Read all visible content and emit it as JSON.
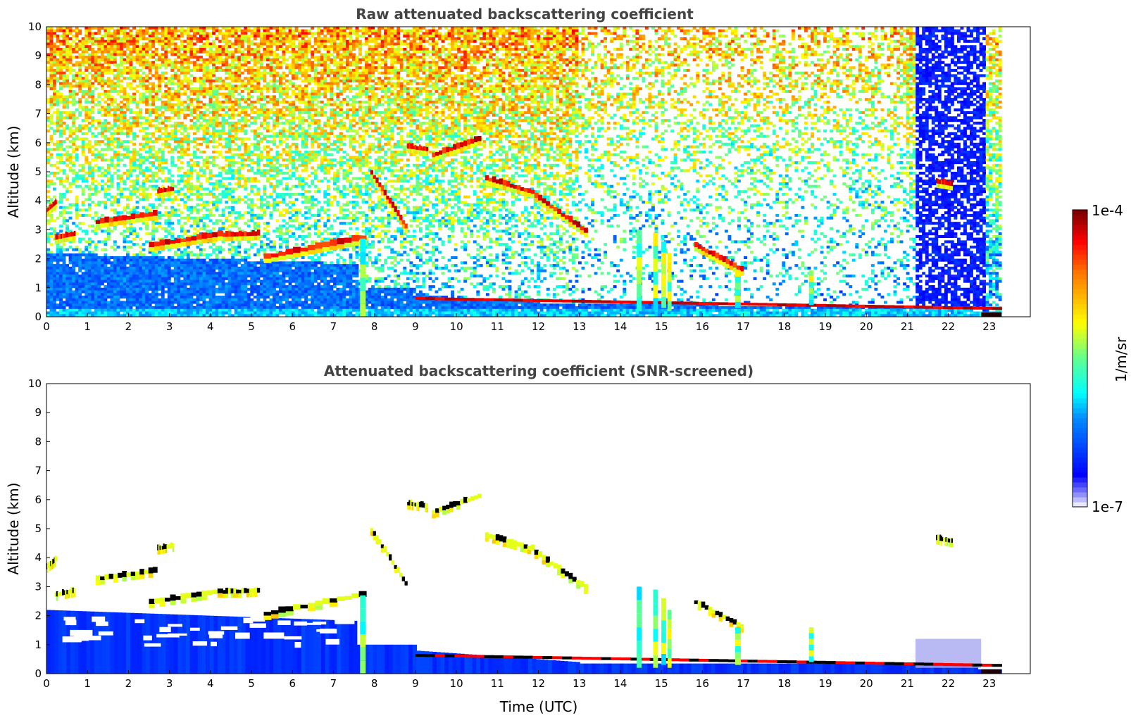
{
  "chart_data": [
    {
      "type": "heatmap",
      "title": "Raw attenuated backscattering coefficient",
      "xlabel": "",
      "ylabel": "Altitude (km)",
      "xlim": [
        0,
        24
      ],
      "ylim": [
        0,
        10
      ],
      "xticks": [
        "0",
        "1",
        "2",
        "3",
        "4",
        "5",
        "6",
        "7",
        "8",
        "9",
        "10",
        "11",
        "12",
        "13",
        "14",
        "15",
        "16",
        "17",
        "18",
        "19",
        "20",
        "21",
        "22",
        "23"
      ],
      "yticks": [
        "0",
        "1",
        "2",
        "3",
        "4",
        "5",
        "6",
        "7",
        "8",
        "9",
        "10"
      ],
      "data_end_hour": 23.3,
      "noise_level": "raw",
      "features": [
        {
          "kind": "layer",
          "t0": 0.0,
          "t1": 0.25,
          "z0": 3.6,
          "z1": 3.9
        },
        {
          "kind": "layer",
          "t0": 0.2,
          "t1": 0.7,
          "z0": 2.65,
          "z1": 2.8
        },
        {
          "kind": "layer",
          "t0": 1.2,
          "t1": 2.7,
          "z0": 3.2,
          "z1": 3.5
        },
        {
          "kind": "layer",
          "t0": 2.7,
          "t1": 3.1,
          "z0": 4.25,
          "z1": 4.35
        },
        {
          "kind": "layer",
          "t0": 2.5,
          "t1": 4.3,
          "z0": 2.4,
          "z1": 2.8
        },
        {
          "kind": "layer",
          "t0": 4.3,
          "t1": 5.2,
          "z0": 2.75,
          "z1": 2.8
        },
        {
          "kind": "layer",
          "t0": 5.3,
          "t1": 7.8,
          "z0": 2.0,
          "z1": 2.7
        },
        {
          "kind": "layer",
          "t0": 7.9,
          "t1": 8.8,
          "z0": 4.9,
          "z1": 2.9
        },
        {
          "kind": "layer",
          "t0": 8.8,
          "t1": 9.3,
          "z0": 5.8,
          "z1": 5.7
        },
        {
          "kind": "layer",
          "t0": 9.4,
          "t1": 10.6,
          "z0": 5.5,
          "z1": 6.1
        },
        {
          "kind": "layer",
          "t0": 10.7,
          "t1": 11.9,
          "z0": 4.7,
          "z1": 4.2
        },
        {
          "kind": "layer",
          "t0": 11.9,
          "t1": 13.2,
          "z0": 4.1,
          "z1": 2.8
        },
        {
          "kind": "layer",
          "t0": 15.8,
          "t1": 17.0,
          "z0": 2.4,
          "z1": 1.5
        },
        {
          "kind": "layer",
          "t0": 21.7,
          "t1": 22.1,
          "z0": 4.6,
          "z1": 4.5
        },
        {
          "kind": "boundary",
          "t0": 9.0,
          "t1": 23.3,
          "z0": 0.6,
          "z1": 0.25
        }
      ]
    },
    {
      "type": "heatmap",
      "title": "Attenuated backscattering coefficient (SNR-screened)",
      "xlabel": "Time (UTC)",
      "ylabel": "Altitude (km)",
      "xlim": [
        0,
        24
      ],
      "ylim": [
        0,
        10
      ],
      "xticks": [
        "0",
        "1",
        "2",
        "3",
        "4",
        "5",
        "6",
        "7",
        "8",
        "9",
        "10",
        "11",
        "12",
        "13",
        "14",
        "15",
        "16",
        "17",
        "18",
        "19",
        "20",
        "21",
        "22",
        "23"
      ],
      "yticks": [
        "0",
        "1",
        "2",
        "3",
        "4",
        "5",
        "6",
        "7",
        "8",
        "9",
        "10"
      ],
      "data_end_hour": 23.3,
      "noise_level": "screened"
    }
  ],
  "colorbar": {
    "label": "1/m/sr",
    "max_label": "1e-4",
    "min_label": "1e-7",
    "colormap": "jet",
    "scale": "log",
    "range": [
      1e-07,
      0.0001
    ]
  }
}
